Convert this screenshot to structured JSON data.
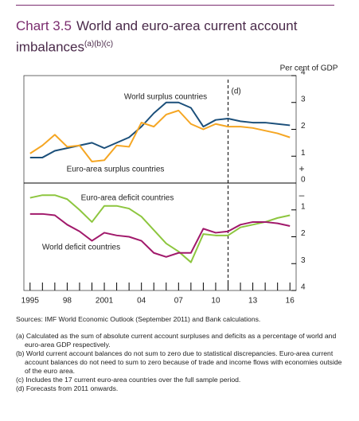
{
  "chart_data": {
    "type": "line",
    "title_number": "Chart 3.5",
    "title": "World and euro-area current account imbalances",
    "title_notes": "(a)(b)(c)",
    "y_axis_label": "Per cent of GDP",
    "positive_sign": "+",
    "negative_sign": "–",
    "forecast_label": "(d)",
    "forecast_start": 2011,
    "x": [
      1995,
      1996,
      1997,
      1998,
      1999,
      2000,
      2001,
      2002,
      2003,
      2004,
      2005,
      2006,
      2007,
      2008,
      2009,
      2010,
      2011,
      2012,
      2013,
      2014,
      2015,
      2016
    ],
    "xlim": [
      1994.5,
      2016.5
    ],
    "xticks": [
      {
        "value": 1995,
        "label": "1995"
      },
      {
        "value": 1998,
        "label": "98"
      },
      2001,
      {
        "value": 2004,
        "label": "04"
      },
      {
        "value": 2007,
        "label": "07"
      },
      {
        "value": 2010,
        "label": "10"
      },
      {
        "value": 2013,
        "label": "13"
      },
      {
        "value": 2016,
        "label": "16"
      }
    ],
    "xticks_minor": [
      1996,
      1997,
      1999,
      2000,
      2002,
      2003,
      2005,
      2006,
      2008,
      2009,
      2011,
      2012,
      2014,
      2015
    ],
    "ylim": [
      -4,
      4
    ],
    "yticks": [
      4,
      3,
      2,
      1,
      0,
      {
        "value": -1,
        "label": "1"
      },
      {
        "value": -2,
        "label": "2"
      },
      {
        "value": -3,
        "label": "3"
      },
      {
        "value": -4,
        "label": "4"
      }
    ],
    "series": [
      {
        "name": "World surplus countries",
        "color": "#1b4f7a",
        "values": [
          0.95,
          0.95,
          1.2,
          1.3,
          1.4,
          1.5,
          1.3,
          1.5,
          1.7,
          2.1,
          2.6,
          3.0,
          3.0,
          2.8,
          2.1,
          2.35,
          2.4,
          2.3,
          2.25,
          2.25,
          2.2,
          2.15
        ]
      },
      {
        "name": "Euro-area surplus countries",
        "color": "#f5a623",
        "values": [
          1.1,
          1.4,
          1.8,
          1.35,
          1.4,
          0.8,
          0.85,
          1.4,
          1.35,
          2.25,
          2.1,
          2.55,
          2.7,
          2.2,
          2.0,
          2.2,
          2.1,
          2.1,
          2.05,
          1.95,
          1.85,
          1.7
        ]
      },
      {
        "name": "Euro-area deficit countries",
        "color": "#8dc63f",
        "values": [
          -0.55,
          -0.45,
          -0.45,
          -0.6,
          -1.0,
          -1.45,
          -0.85,
          -0.85,
          -0.95,
          -1.25,
          -1.75,
          -2.25,
          -2.55,
          -2.95,
          -1.9,
          -1.95,
          -1.95,
          -1.65,
          -1.55,
          -1.45,
          -1.3,
          -1.2
        ]
      },
      {
        "name": "World deficit countries",
        "color": "#a1196b",
        "values": [
          -1.15,
          -1.15,
          -1.2,
          -1.55,
          -1.8,
          -2.15,
          -1.85,
          -1.95,
          -2.0,
          -2.15,
          -2.6,
          -2.75,
          -2.6,
          -2.6,
          -1.7,
          -1.85,
          -1.8,
          -1.55,
          -1.45,
          -1.45,
          -1.5,
          -1.6
        ]
      }
    ],
    "sources": "Sources: IMF World Economic Outlook (September 2011) and Bank calculations.",
    "notes": [
      "(a) Calculated as the sum of absolute current account surpluses and deficits as a percentage of world and euro-area GDP respectively.",
      "(b) World current account balances do not sum to zero due to statistical discrepancies. Euro-area current account balances do not need to sum to zero because of trade and income flows with economies outside of the euro area.",
      "(c) Includes the 17 current euro-area countries over the full sample period.",
      "(d) Forecasts from 2011 onwards."
    ]
  }
}
